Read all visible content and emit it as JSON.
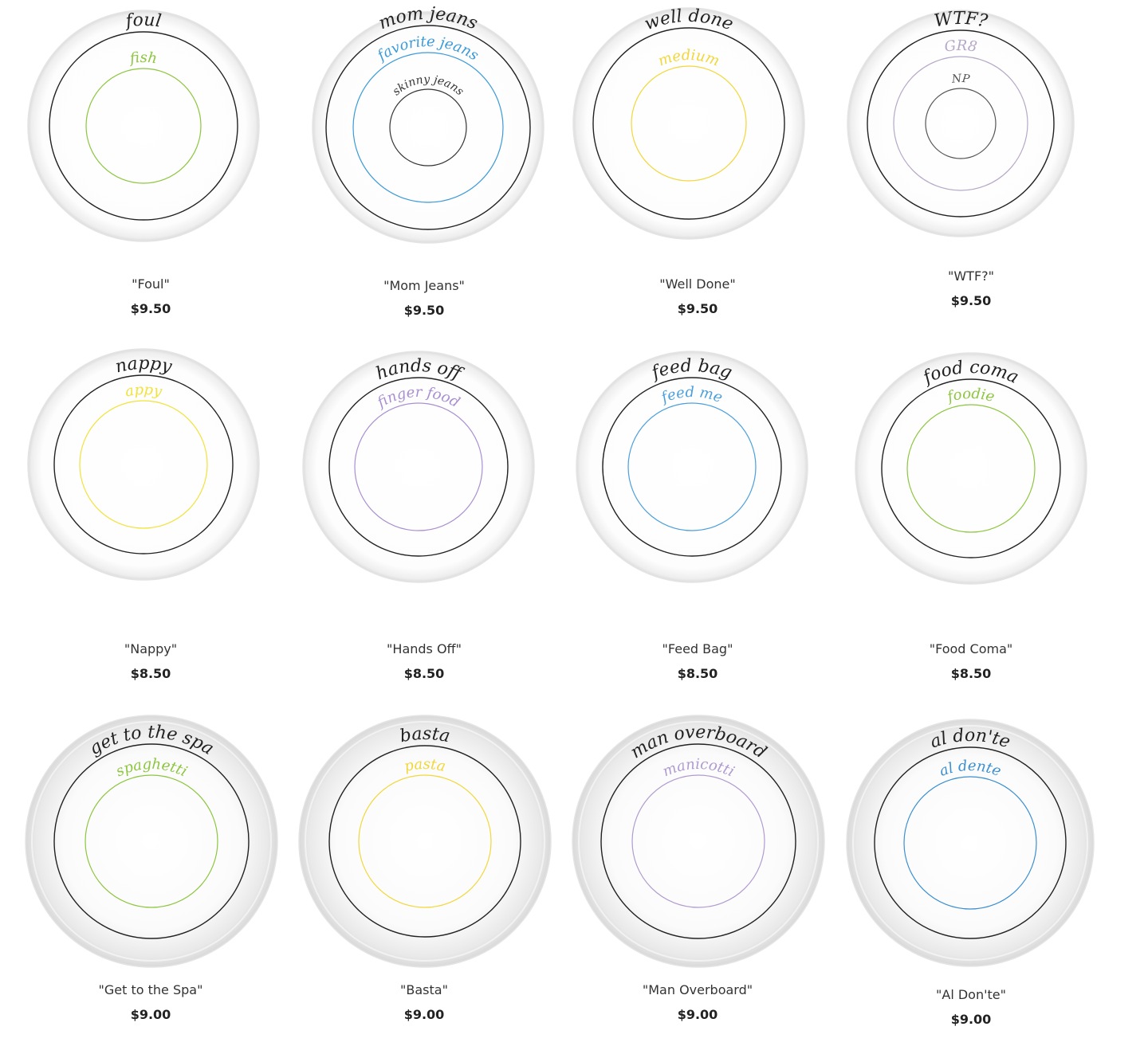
{
  "products": [
    {
      "title": "\"Foul\"",
      "price": "$9.50",
      "type": "plate",
      "rings": [
        {
          "text": "foul",
          "color": "#222222"
        },
        {
          "text": "fish",
          "color": "#8dc63f"
        }
      ]
    },
    {
      "title": "\"Mom Jeans\"",
      "price": "$9.50",
      "type": "plate",
      "rings": [
        {
          "text": "mom jeans",
          "color": "#222222"
        },
        {
          "text": "favorite jeans",
          "color": "#3b9ad9"
        },
        {
          "text": "skinny jeans",
          "color": "#333333"
        }
      ]
    },
    {
      "title": "\"Well Done\"",
      "price": "$9.50",
      "type": "plate",
      "rings": [
        {
          "text": "well done",
          "color": "#222222"
        },
        {
          "text": "medium",
          "color": "#f2d73a"
        }
      ]
    },
    {
      "title": "\"WTF?\"",
      "price": "$9.50",
      "type": "plate",
      "rings": [
        {
          "text": "WTF?",
          "color": "#222222"
        },
        {
          "text": "GR8",
          "color": "#b6a8c8"
        },
        {
          "text": "NP",
          "color": "#555555"
        }
      ]
    },
    {
      "title": "\"Nappy\"",
      "price": "$8.50",
      "type": "plate",
      "rings": [
        {
          "text": "nappy",
          "color": "#222222"
        },
        {
          "text": "appy",
          "color": "#f2e23a"
        }
      ]
    },
    {
      "title": "\"Hands Off\"",
      "price": "$8.50",
      "type": "plate",
      "rings": [
        {
          "text": "hands off",
          "color": "#222222"
        },
        {
          "text": "finger food",
          "color": "#a98fd1"
        }
      ]
    },
    {
      "title": "\"Feed Bag\"",
      "price": "$8.50",
      "type": "plate",
      "rings": [
        {
          "text": "feed bag",
          "color": "#222222"
        },
        {
          "text": "feed me",
          "color": "#4a9fdc"
        }
      ]
    },
    {
      "title": "\"Food Coma\"",
      "price": "$8.50",
      "type": "plate",
      "rings": [
        {
          "text": "food coma",
          "color": "#222222"
        },
        {
          "text": "foodie",
          "color": "#8dc63f"
        }
      ]
    },
    {
      "title": "\"Get to the Spa\"",
      "price": "$9.00",
      "type": "bowl",
      "rings": [
        {
          "text": "get to the spa",
          "color": "#222222"
        },
        {
          "text": "spaghetti",
          "color": "#8dc63f"
        }
      ]
    },
    {
      "title": "\"Basta\"",
      "price": "$9.00",
      "type": "bowl",
      "rings": [
        {
          "text": "basta",
          "color": "#222222"
        },
        {
          "text": "pasta",
          "color": "#f2d73a"
        }
      ]
    },
    {
      "title": "\"Man Overboard\"",
      "price": "$9.00",
      "type": "bowl",
      "rings": [
        {
          "text": "man overboard",
          "color": "#222222"
        },
        {
          "text": "manicotti",
          "color": "#b09bd0"
        }
      ]
    },
    {
      "title": "\"Al Don'te\"",
      "price": "$9.00",
      "type": "bowl",
      "rings": [
        {
          "text": "al don'te",
          "color": "#222222"
        },
        {
          "text": "al dente",
          "color": "#3b8fd1"
        }
      ]
    }
  ]
}
